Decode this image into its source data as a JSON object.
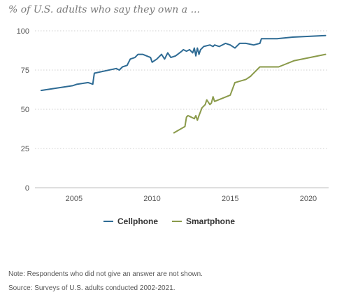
{
  "chart_data": {
    "type": "line",
    "title": "% of U.S. adults who say they own a ...",
    "xlabel": "",
    "ylabel": "",
    "xlim": [
      2002.5,
      2021.3
    ],
    "ylim": [
      0,
      100
    ],
    "y_ticks": [
      0,
      25,
      50,
      75,
      100
    ],
    "x_ticks": [
      2005,
      2010,
      2015,
      2020
    ],
    "grid": true,
    "legend_position": "bottom-center",
    "series": [
      {
        "name": "Cellphone",
        "color": "#2e6b94",
        "x": [
          2002.9,
          2004.9,
          2005.2,
          2005.9,
          2006.2,
          2006.3,
          2007.7,
          2007.9,
          2008.1,
          2008.4,
          2008.6,
          2008.9,
          2009.1,
          2009.4,
          2009.9,
          2010.0,
          2010.3,
          2010.6,
          2010.8,
          2011.0,
          2011.2,
          2011.5,
          2011.9,
          2012.0,
          2012.2,
          2012.4,
          2012.6,
          2012.7,
          2012.8,
          2012.9,
          2013.0,
          2013.1,
          2013.3,
          2013.7,
          2013.9,
          2014.0,
          2014.3,
          2014.7,
          2015.0,
          2015.3,
          2015.6,
          2016.0,
          2016.5,
          2016.9,
          2017.0,
          2018.0,
          2019.0,
          2021.1
        ],
        "y": [
          62,
          65,
          66,
          67,
          66,
          73,
          76,
          75,
          77,
          78,
          82,
          83,
          85,
          85,
          83,
          80,
          82,
          85,
          82,
          86,
          83,
          84,
          87,
          88,
          87,
          88,
          86,
          89,
          84,
          89,
          85,
          88,
          90,
          91,
          90,
          91,
          90,
          92,
          91,
          89,
          92,
          92,
          91,
          92,
          95,
          95,
          96,
          97
        ]
      },
      {
        "name": "Smartphone",
        "color": "#8a9a4a",
        "x": [
          2011.4,
          2012.1,
          2012.2,
          2012.3,
          2012.5,
          2012.7,
          2012.8,
          2012.9,
          2013.0,
          2013.2,
          2013.4,
          2013.5,
          2013.7,
          2013.8,
          2013.9,
          2014.0,
          2015.0,
          2015.3,
          2016.0,
          2016.3,
          2016.4,
          2016.9,
          2018.1,
          2019.1,
          2021.1
        ],
        "y": [
          35,
          39,
          45,
          46,
          45,
          44,
          46,
          43,
          46,
          51,
          53,
          56,
          53,
          54,
          58,
          55,
          59,
          67,
          69,
          71,
          72,
          77,
          77,
          81,
          85
        ]
      }
    ]
  },
  "notes": {
    "note": "Note: Respondents who did not give an answer are not shown.",
    "source": "Source: Surveys of U.S. adults conducted 2002-2021."
  }
}
